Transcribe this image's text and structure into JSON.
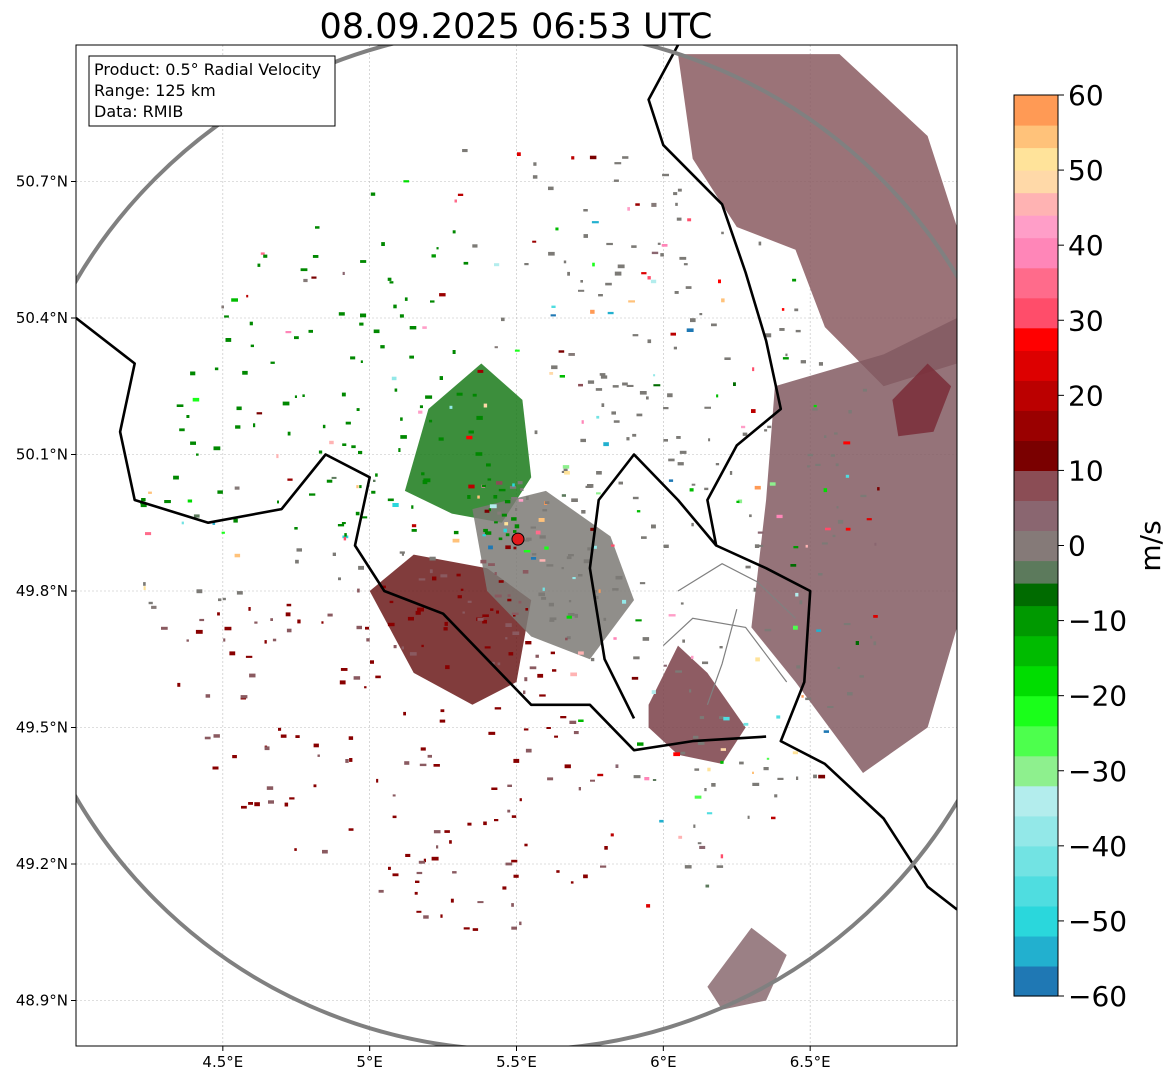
{
  "title": "08.09.2025 06:53 UTC",
  "info_box": {
    "product": "Product: 0.5° Radial Velocity",
    "range": "Range: 125 km",
    "data": "Data: RMIB"
  },
  "map": {
    "lon_range": [
      4.0,
      7.0
    ],
    "lat_range": [
      48.8,
      51.0
    ],
    "radar_site": {
      "lon": 5.505,
      "lat": 49.914
    },
    "range_km": 125,
    "lon_ticks": [
      {
        "value": 4.5,
        "label": "4.5°E"
      },
      {
        "value": 5.0,
        "label": "5°E"
      },
      {
        "value": 5.5,
        "label": "5.5°E"
      },
      {
        "value": 6.0,
        "label": "6°E"
      },
      {
        "value": 6.5,
        "label": "6.5°E"
      }
    ],
    "lat_ticks": [
      {
        "value": 50.7,
        "label": "50.7°N"
      },
      {
        "value": 50.4,
        "label": "50.4°N"
      },
      {
        "value": 50.1,
        "label": "50.1°N"
      },
      {
        "value": 49.8,
        "label": "49.8°N"
      },
      {
        "value": 49.5,
        "label": "49.5°N"
      },
      {
        "value": 49.2,
        "label": "49.2°N"
      },
      {
        "value": 48.9,
        "label": "48.9°N"
      }
    ],
    "grid": true,
    "site_color": "#e31a1c",
    "range_ring_color": "#808080",
    "border_color": "#000000",
    "admin_border_color": "#808080"
  },
  "colorbar": {
    "label": "m/s",
    "vmin": -60,
    "vmax": 60,
    "ticks": [
      {
        "value": 60,
        "label": "60"
      },
      {
        "value": 50,
        "label": "50"
      },
      {
        "value": 40,
        "label": "40"
      },
      {
        "value": 30,
        "label": "30"
      },
      {
        "value": 20,
        "label": "20"
      },
      {
        "value": 10,
        "label": "10"
      },
      {
        "value": 0,
        "label": "0"
      },
      {
        "value": -10,
        "label": "−10"
      },
      {
        "value": -20,
        "label": "−20"
      },
      {
        "value": -30,
        "label": "−30"
      },
      {
        "value": -40,
        "label": "−40"
      },
      {
        "value": -50,
        "label": "−50"
      },
      {
        "value": -60,
        "label": "−60"
      }
    ],
    "stops": [
      {
        "from": -60,
        "to": -56,
        "color": "#1f78b4"
      },
      {
        "from": -56,
        "to": -52,
        "color": "#22b0cf"
      },
      {
        "from": -52,
        "to": -48,
        "color": "#2ad7dc"
      },
      {
        "from": -48,
        "to": -44,
        "color": "#4fdde0"
      },
      {
        "from": -44,
        "to": -40,
        "color": "#72e3e3"
      },
      {
        "from": -40,
        "to": -36,
        "color": "#93e8e8"
      },
      {
        "from": -36,
        "to": -32,
        "color": "#b3eded"
      },
      {
        "from": -32,
        "to": -28,
        "color": "#8ef08e"
      },
      {
        "from": -28,
        "to": -24,
        "color": "#4dff4d"
      },
      {
        "from": -24,
        "to": -20,
        "color": "#1aff1a"
      },
      {
        "from": -20,
        "to": -16,
        "color": "#00dd00"
      },
      {
        "from": -16,
        "to": -12,
        "color": "#00bb00"
      },
      {
        "from": -12,
        "to": -8,
        "color": "#009900"
      },
      {
        "from": -8,
        "to": -5,
        "color": "#006b00"
      },
      {
        "from": -5,
        "to": -2,
        "color": "#5c7a5c"
      },
      {
        "from": -2,
        "to": 2,
        "color": "#857a78"
      },
      {
        "from": 2,
        "to": 6,
        "color": "#8a6670"
      },
      {
        "from": 6,
        "to": 10,
        "color": "#8b4d55"
      },
      {
        "from": 10,
        "to": 14,
        "color": "#7a0000"
      },
      {
        "from": 14,
        "to": 18,
        "color": "#9a0000"
      },
      {
        "from": 18,
        "to": 22,
        "color": "#bb0000"
      },
      {
        "from": 22,
        "to": 26,
        "color": "#dd0000"
      },
      {
        "from": 26,
        "to": 29,
        "color": "#ff0000"
      },
      {
        "from": 29,
        "to": 33,
        "color": "#ff4d6a"
      },
      {
        "from": 33,
        "to": 37,
        "color": "#ff6b8b"
      },
      {
        "from": 37,
        "to": 41,
        "color": "#ff86b8"
      },
      {
        "from": 41,
        "to": 44,
        "color": "#ff9ec8"
      },
      {
        "from": 44,
        "to": 47,
        "color": "#ffb3b3"
      },
      {
        "from": 47,
        "to": 50,
        "color": "#ffd9a8"
      },
      {
        "from": 50,
        "to": 53,
        "color": "#ffe39a"
      },
      {
        "from": 53,
        "to": 56,
        "color": "#ffc27a"
      },
      {
        "from": 56,
        "to": 60,
        "color": "#ff9a55"
      }
    ]
  },
  "echo_regions": [
    {
      "name": "northeast-receding-echo",
      "color": "#8a5a60",
      "points": [
        [
          6.05,
          50.98
        ],
        [
          6.6,
          50.98
        ],
        [
          6.9,
          50.8
        ],
        [
          7.0,
          50.6
        ],
        [
          7.0,
          50.3
        ],
        [
          6.75,
          50.25
        ],
        [
          6.55,
          50.38
        ],
        [
          6.45,
          50.55
        ],
        [
          6.25,
          50.6
        ],
        [
          6.1,
          50.75
        ],
        [
          6.05,
          50.98
        ]
      ]
    },
    {
      "name": "east-receding-echo",
      "color": "#825a62",
      "points": [
        [
          6.38,
          50.25
        ],
        [
          6.75,
          50.32
        ],
        [
          7.0,
          50.4
        ],
        [
          7.0,
          49.72
        ],
        [
          6.9,
          49.5
        ],
        [
          6.68,
          49.4
        ],
        [
          6.45,
          49.6
        ],
        [
          6.3,
          49.72
        ],
        [
          6.35,
          50.0
        ],
        [
          6.38,
          50.25
        ]
      ]
    },
    {
      "name": "east-core-echo",
      "color": "#7a2d38",
      "points": [
        [
          6.78,
          50.22
        ],
        [
          6.9,
          50.3
        ],
        [
          6.98,
          50.25
        ],
        [
          6.92,
          50.15
        ],
        [
          6.8,
          50.14
        ]
      ]
    },
    {
      "name": "south-luxembourg-echo",
      "color": "#7a4048",
      "points": [
        [
          5.95,
          49.55
        ],
        [
          6.05,
          49.68
        ],
        [
          6.15,
          49.62
        ],
        [
          6.28,
          49.5
        ],
        [
          6.2,
          49.42
        ],
        [
          6.05,
          49.44
        ],
        [
          5.95,
          49.5
        ]
      ]
    },
    {
      "name": "northwest-approaching-echo",
      "color": "#1a7a1a",
      "points": [
        [
          5.12,
          50.02
        ],
        [
          5.2,
          50.2
        ],
        [
          5.38,
          50.3
        ],
        [
          5.52,
          50.22
        ],
        [
          5.55,
          50.05
        ],
        [
          5.45,
          49.95
        ],
        [
          5.28,
          49.97
        ],
        [
          5.12,
          50.02
        ]
      ]
    },
    {
      "name": "south-receding-echo",
      "color": "#6b1a1a",
      "points": [
        [
          5.0,
          49.8
        ],
        [
          5.15,
          49.62
        ],
        [
          5.35,
          49.55
        ],
        [
          5.5,
          49.6
        ],
        [
          5.55,
          49.78
        ],
        [
          5.4,
          49.85
        ],
        [
          5.15,
          49.88
        ],
        [
          5.0,
          49.8
        ]
      ]
    },
    {
      "name": "central-clutter-echo",
      "color": "#7c7a76",
      "points": [
        [
          5.35,
          49.98
        ],
        [
          5.6,
          50.02
        ],
        [
          5.82,
          49.92
        ],
        [
          5.9,
          49.78
        ],
        [
          5.75,
          49.65
        ],
        [
          5.55,
          49.7
        ],
        [
          5.4,
          49.8
        ],
        [
          5.35,
          49.98
        ]
      ]
    },
    {
      "name": "far-southeast-echo",
      "color": "#8a6a70",
      "points": [
        [
          6.15,
          48.93
        ],
        [
          6.3,
          49.06
        ],
        [
          6.42,
          49.0
        ],
        [
          6.35,
          48.9
        ],
        [
          6.2,
          48.88
        ]
      ]
    }
  ],
  "borders": {
    "national": [
      [
        [
          6.05,
          51.0
        ],
        [
          5.95,
          50.88
        ],
        [
          6.0,
          50.78
        ],
        [
          6.2,
          50.65
        ],
        [
          6.28,
          50.5
        ],
        [
          6.35,
          50.35
        ],
        [
          6.4,
          50.2
        ],
        [
          6.25,
          50.12
        ],
        [
          6.15,
          50.0
        ],
        [
          6.18,
          49.9
        ],
        [
          6.35,
          49.85
        ],
        [
          6.5,
          49.8
        ],
        [
          6.48,
          49.6
        ],
        [
          6.4,
          49.47
        ],
        [
          6.55,
          49.42
        ],
        [
          6.75,
          49.3
        ],
        [
          6.9,
          49.15
        ],
        [
          7.0,
          49.1
        ]
      ],
      [
        [
          4.0,
          50.4
        ],
        [
          4.2,
          50.3
        ],
        [
          4.15,
          50.15
        ],
        [
          4.2,
          50.0
        ],
        [
          4.45,
          49.95
        ],
        [
          4.7,
          49.98
        ],
        [
          4.85,
          50.1
        ],
        [
          5.0,
          50.05
        ],
        [
          4.95,
          49.9
        ],
        [
          5.05,
          49.8
        ],
        [
          5.25,
          49.75
        ],
        [
          5.4,
          49.65
        ],
        [
          5.55,
          49.55
        ],
        [
          5.75,
          49.55
        ],
        [
          5.9,
          49.45
        ],
        [
          6.1,
          49.47
        ],
        [
          6.35,
          49.48
        ]
      ],
      [
        [
          6.18,
          49.9
        ],
        [
          6.05,
          50.0
        ],
        [
          5.9,
          50.1
        ],
        [
          5.78,
          50.0
        ],
        [
          5.75,
          49.85
        ],
        [
          5.8,
          49.65
        ],
        [
          5.9,
          49.52
        ]
      ]
    ],
    "admin": [
      [
        [
          6.05,
          49.8
        ],
        [
          6.2,
          49.86
        ],
        [
          6.32,
          49.82
        ],
        [
          6.45,
          49.74
        ]
      ],
      [
        [
          6.0,
          49.68
        ],
        [
          6.1,
          49.74
        ],
        [
          6.28,
          49.72
        ],
        [
          6.42,
          49.6
        ]
      ],
      [
        [
          6.15,
          49.55
        ],
        [
          6.2,
          49.64
        ],
        [
          6.25,
          49.76
        ]
      ]
    ]
  }
}
